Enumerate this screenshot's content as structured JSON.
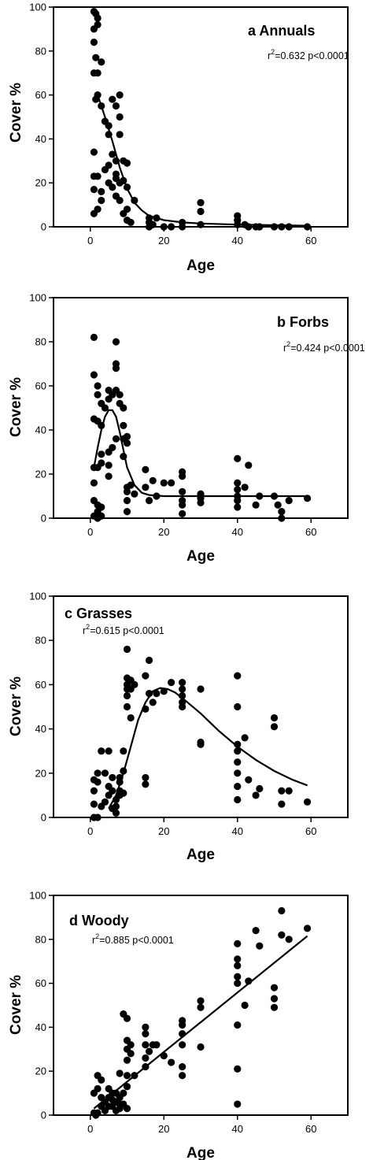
{
  "chart_data": [
    {
      "type": "scatter",
      "title": "a  Annuals",
      "stats": {
        "r2_prefix": "r",
        "r2_sup": "2",
        "r2_rest": "=0.632 p<0.0001"
      },
      "xlabel": "Age",
      "ylabel": "Cover %",
      "xlim": [
        -10,
        70
      ],
      "ylim": [
        0,
        100
      ],
      "xticks": [
        "0",
        "20",
        "40",
        "60"
      ],
      "yticks": [
        "0",
        "20",
        "40",
        "60",
        "80",
        "100"
      ],
      "points": [
        [
          1,
          98
        ],
        [
          1.5,
          97
        ],
        [
          2,
          95
        ],
        [
          2,
          92
        ],
        [
          1,
          90
        ],
        [
          1,
          84
        ],
        [
          1.5,
          77
        ],
        [
          1,
          70
        ],
        [
          2,
          70
        ],
        [
          3,
          75
        ],
        [
          1.5,
          58
        ],
        [
          2,
          60
        ],
        [
          3,
          55
        ],
        [
          4,
          48
        ],
        [
          5,
          46
        ],
        [
          5,
          42
        ],
        [
          6,
          58
        ],
        [
          7,
          55
        ],
        [
          8,
          60
        ],
        [
          8,
          50
        ],
        [
          8,
          42
        ],
        [
          6,
          33
        ],
        [
          7,
          30
        ],
        [
          5,
          28
        ],
        [
          4,
          26
        ],
        [
          7,
          24
        ],
        [
          7,
          22
        ],
        [
          8,
          20
        ],
        [
          9,
          21
        ],
        [
          9,
          30
        ],
        [
          10,
          29
        ],
        [
          6,
          18
        ],
        [
          5,
          20
        ],
        [
          7,
          14
        ],
        [
          8,
          12
        ],
        [
          9,
          6
        ],
        [
          10,
          8
        ],
        [
          10,
          3
        ],
        [
          11,
          2
        ],
        [
          12,
          12
        ],
        [
          1,
          34
        ],
        [
          1,
          23
        ],
        [
          1,
          17
        ],
        [
          2,
          23
        ],
        [
          3,
          12
        ],
        [
          2,
          8
        ],
        [
          1,
          6
        ],
        [
          3,
          16
        ],
        [
          10,
          18
        ],
        [
          16,
          4
        ],
        [
          16,
          2
        ],
        [
          17,
          1
        ],
        [
          18,
          4
        ],
        [
          16,
          0
        ],
        [
          20,
          0
        ],
        [
          22,
          0
        ],
        [
          25,
          2
        ],
        [
          25,
          0
        ],
        [
          30,
          11
        ],
        [
          30,
          7
        ],
        [
          30,
          1
        ],
        [
          40,
          5
        ],
        [
          40,
          3
        ],
        [
          40,
          1
        ],
        [
          42,
          1
        ],
        [
          43,
          0
        ],
        [
          45,
          0
        ],
        [
          46,
          0
        ],
        [
          50,
          0
        ],
        [
          52,
          0
        ],
        [
          54,
          0
        ],
        [
          59,
          0
        ]
      ],
      "curve": [
        [
          2,
          60
        ],
        [
          4,
          50
        ],
        [
          6,
          39
        ],
        [
          8,
          27
        ],
        [
          10,
          17.5
        ],
        [
          12,
          11
        ],
        [
          14,
          7.5
        ],
        [
          16,
          5
        ],
        [
          20,
          3
        ],
        [
          25,
          2
        ],
        [
          30,
          1.5
        ],
        [
          40,
          1
        ],
        [
          50,
          0.7
        ],
        [
          59,
          0.5
        ]
      ]
    },
    {
      "type": "scatter",
      "title": "b Forbs",
      "stats": {
        "r2_prefix": "r",
        "r2_sup": "2",
        "r2_rest": "=0.424 p<0.0001"
      },
      "xlabel": "Age",
      "ylabel": "Cover %",
      "xlim": [
        -10,
        70
      ],
      "ylim": [
        0,
        100
      ],
      "xticks": [
        "0",
        "20",
        "40",
        "60"
      ],
      "yticks": [
        "0",
        "20",
        "40",
        "60",
        "80",
        "100"
      ],
      "points": [
        [
          1,
          82
        ],
        [
          1,
          65
        ],
        [
          2,
          60
        ],
        [
          2,
          56
        ],
        [
          1,
          45
        ],
        [
          2,
          44
        ],
        [
          3,
          42
        ],
        [
          3,
          52
        ],
        [
          4,
          50
        ],
        [
          5,
          58
        ],
        [
          5,
          54
        ],
        [
          6,
          56
        ],
        [
          7,
          80
        ],
        [
          7,
          70
        ],
        [
          7,
          68
        ],
        [
          7,
          58
        ],
        [
          8,
          56
        ],
        [
          8,
          52
        ],
        [
          9,
          50
        ],
        [
          9,
          42
        ],
        [
          9,
          36
        ],
        [
          10,
          37
        ],
        [
          10,
          34
        ],
        [
          7,
          36
        ],
        [
          6,
          32
        ],
        [
          5,
          30
        ],
        [
          5,
          24
        ],
        [
          5,
          19
        ],
        [
          3,
          29
        ],
        [
          3,
          25
        ],
        [
          2,
          23
        ],
        [
          1,
          23
        ],
        [
          1,
          16
        ],
        [
          1,
          8
        ],
        [
          2,
          6
        ],
        [
          3,
          5
        ],
        [
          2,
          3
        ],
        [
          1,
          1
        ],
        [
          2,
          0
        ],
        [
          3,
          1
        ],
        [
          9,
          28
        ],
        [
          10,
          14
        ],
        [
          10,
          12
        ],
        [
          11,
          15
        ],
        [
          10,
          8
        ],
        [
          10,
          3
        ],
        [
          12,
          11
        ],
        [
          15,
          22
        ],
        [
          15,
          14
        ],
        [
          16,
          8
        ],
        [
          17,
          17
        ],
        [
          18,
          10
        ],
        [
          20,
          16
        ],
        [
          22,
          16
        ],
        [
          25,
          21
        ],
        [
          25,
          19
        ],
        [
          25,
          12
        ],
        [
          25,
          8
        ],
        [
          25,
          6
        ],
        [
          25,
          2
        ],
        [
          30,
          11
        ],
        [
          30,
          9
        ],
        [
          30,
          7
        ],
        [
          40,
          27
        ],
        [
          40,
          16
        ],
        [
          40,
          13
        ],
        [
          40,
          10
        ],
        [
          40,
          8
        ],
        [
          40,
          5
        ],
        [
          42,
          14
        ],
        [
          43,
          24
        ],
        [
          45,
          6
        ],
        [
          46,
          10
        ],
        [
          50,
          10
        ],
        [
          51,
          6
        ],
        [
          52,
          3
        ],
        [
          52,
          0
        ],
        [
          54,
          8
        ],
        [
          59,
          9
        ]
      ],
      "curve": [
        [
          1,
          23
        ],
        [
          2,
          32
        ],
        [
          3,
          40
        ],
        [
          4,
          46
        ],
        [
          5,
          49
        ],
        [
          6,
          49
        ],
        [
          7,
          46
        ],
        [
          8,
          39
        ],
        [
          9,
          31
        ],
        [
          10,
          23
        ],
        [
          12,
          15
        ],
        [
          14,
          11.5
        ],
        [
          16,
          10.5
        ],
        [
          20,
          10
        ],
        [
          30,
          10
        ],
        [
          40,
          10
        ],
        [
          50,
          10
        ],
        [
          59,
          10
        ]
      ]
    },
    {
      "type": "scatter",
      "title": "c  Grasses",
      "stats": {
        "r2_prefix": "r",
        "r2_sup": "2",
        "r2_rest": "=0.615 p<0.0001"
      },
      "xlabel": "Age",
      "ylabel": "Cover %",
      "xlim": [
        -10,
        70
      ],
      "ylim": [
        0,
        100
      ],
      "xticks": [
        "0",
        "20",
        "40",
        "60"
      ],
      "yticks": [
        "0",
        "20",
        "40",
        "60",
        "80",
        "100"
      ],
      "points": [
        [
          1,
          17
        ],
        [
          1,
          12
        ],
        [
          1,
          6
        ],
        [
          1,
          0
        ],
        [
          2,
          0
        ],
        [
          2,
          16
        ],
        [
          2,
          20
        ],
        [
          3,
          5
        ],
        [
          3,
          30
        ],
        [
          4,
          7
        ],
        [
          4,
          20
        ],
        [
          5,
          14
        ],
        [
          5,
          10
        ],
        [
          5,
          30
        ],
        [
          6,
          12
        ],
        [
          6,
          18
        ],
        [
          6,
          4
        ],
        [
          7,
          8
        ],
        [
          7,
          5
        ],
        [
          7,
          2
        ],
        [
          8,
          18
        ],
        [
          8,
          16
        ],
        [
          8,
          12
        ],
        [
          8,
          10
        ],
        [
          9,
          30
        ],
        [
          9,
          21
        ],
        [
          9,
          11
        ],
        [
          10,
          76
        ],
        [
          10,
          63
        ],
        [
          10,
          60
        ],
        [
          10,
          58
        ],
        [
          10,
          55
        ],
        [
          10,
          50
        ],
        [
          11,
          62
        ],
        [
          11,
          58
        ],
        [
          11,
          45
        ],
        [
          12,
          60
        ],
        [
          15,
          64
        ],
        [
          15,
          49
        ],
        [
          15,
          18
        ],
        [
          15,
          15
        ],
        [
          16,
          56
        ],
        [
          16,
          71
        ],
        [
          17,
          52
        ],
        [
          18,
          56
        ],
        [
          20,
          57
        ],
        [
          22,
          61
        ],
        [
          25,
          61
        ],
        [
          25,
          58
        ],
        [
          25,
          55
        ],
        [
          25,
          52
        ],
        [
          25,
          50
        ],
        [
          30,
          58
        ],
        [
          30,
          34
        ],
        [
          30,
          33
        ],
        [
          40,
          64
        ],
        [
          40,
          50
        ],
        [
          40,
          33
        ],
        [
          40,
          30
        ],
        [
          40,
          25
        ],
        [
          40,
          20
        ],
        [
          40,
          14
        ],
        [
          40,
          8
        ],
        [
          42,
          36
        ],
        [
          43,
          17
        ],
        [
          45,
          10
        ],
        [
          46,
          13
        ],
        [
          50,
          45
        ],
        [
          50,
          41
        ],
        [
          52,
          12
        ],
        [
          52,
          6
        ],
        [
          54,
          12
        ],
        [
          59,
          7
        ]
      ],
      "curve": [
        [
          5,
          4
        ],
        [
          7,
          10
        ],
        [
          9,
          20
        ],
        [
          11,
          32
        ],
        [
          13,
          44
        ],
        [
          15,
          52
        ],
        [
          17,
          57
        ],
        [
          19,
          58.5
        ],
        [
          21,
          58
        ],
        [
          23,
          56.5
        ],
        [
          25,
          54
        ],
        [
          30,
          47
        ],
        [
          35,
          39
        ],
        [
          40,
          32
        ],
        [
          45,
          26
        ],
        [
          50,
          21
        ],
        [
          55,
          17
        ],
        [
          59,
          14.5
        ]
      ]
    },
    {
      "type": "scatter",
      "title": "d  Woody",
      "stats": {
        "r2_prefix": "r",
        "r2_sup": "2",
        "r2_rest": "=0.885 p<0.0001"
      },
      "xlabel": "Age",
      "ylabel": "Cover %",
      "xlim": [
        -10,
        70
      ],
      "ylim": [
        0,
        100
      ],
      "xticks": [
        "0",
        "20",
        "40",
        "60"
      ],
      "yticks": [
        "0",
        "20",
        "40",
        "60",
        "80",
        "100"
      ],
      "points": [
        [
          1,
          10
        ],
        [
          1,
          1
        ],
        [
          1.5,
          0
        ],
        [
          2,
          1
        ],
        [
          2,
          12
        ],
        [
          2,
          18
        ],
        [
          3,
          16
        ],
        [
          3,
          8
        ],
        [
          3,
          4
        ],
        [
          4,
          6
        ],
        [
          4,
          2
        ],
        [
          5,
          12
        ],
        [
          5,
          8
        ],
        [
          5,
          4
        ],
        [
          6,
          10
        ],
        [
          6,
          7
        ],
        [
          6,
          4
        ],
        [
          7,
          10
        ],
        [
          7,
          6
        ],
        [
          7,
          2
        ],
        [
          8,
          8
        ],
        [
          8,
          5
        ],
        [
          8,
          19
        ],
        [
          8,
          3
        ],
        [
          9,
          46
        ],
        [
          9,
          10
        ],
        [
          9,
          5
        ],
        [
          10,
          44
        ],
        [
          10,
          34
        ],
        [
          10,
          30
        ],
        [
          10,
          25
        ],
        [
          10,
          18
        ],
        [
          10,
          13
        ],
        [
          10,
          3
        ],
        [
          11,
          32
        ],
        [
          11,
          28
        ],
        [
          12,
          18
        ],
        [
          15,
          40
        ],
        [
          15,
          37
        ],
        [
          15,
          32
        ],
        [
          15,
          26
        ],
        [
          15,
          22
        ],
        [
          16,
          29
        ],
        [
          17,
          32
        ],
        [
          18,
          32
        ],
        [
          20,
          27
        ],
        [
          22,
          24
        ],
        [
          25,
          43
        ],
        [
          25,
          41
        ],
        [
          25,
          37
        ],
        [
          25,
          32
        ],
        [
          25,
          22
        ],
        [
          25,
          18
        ],
        [
          30,
          52
        ],
        [
          30,
          49
        ],
        [
          30,
          31
        ],
        [
          40,
          78
        ],
        [
          40,
          71
        ],
        [
          40,
          68
        ],
        [
          40,
          63
        ],
        [
          40,
          60
        ],
        [
          40,
          41
        ],
        [
          40,
          21
        ],
        [
          40,
          5
        ],
        [
          42,
          50
        ],
        [
          43,
          61
        ],
        [
          45,
          84
        ],
        [
          46,
          77
        ],
        [
          50,
          58
        ],
        [
          50,
          53
        ],
        [
          50,
          49
        ],
        [
          52,
          93
        ],
        [
          52,
          82
        ],
        [
          54,
          80
        ],
        [
          59,
          85
        ]
      ],
      "curve": [
        [
          1,
          3
        ],
        [
          59,
          81.5
        ]
      ]
    }
  ]
}
